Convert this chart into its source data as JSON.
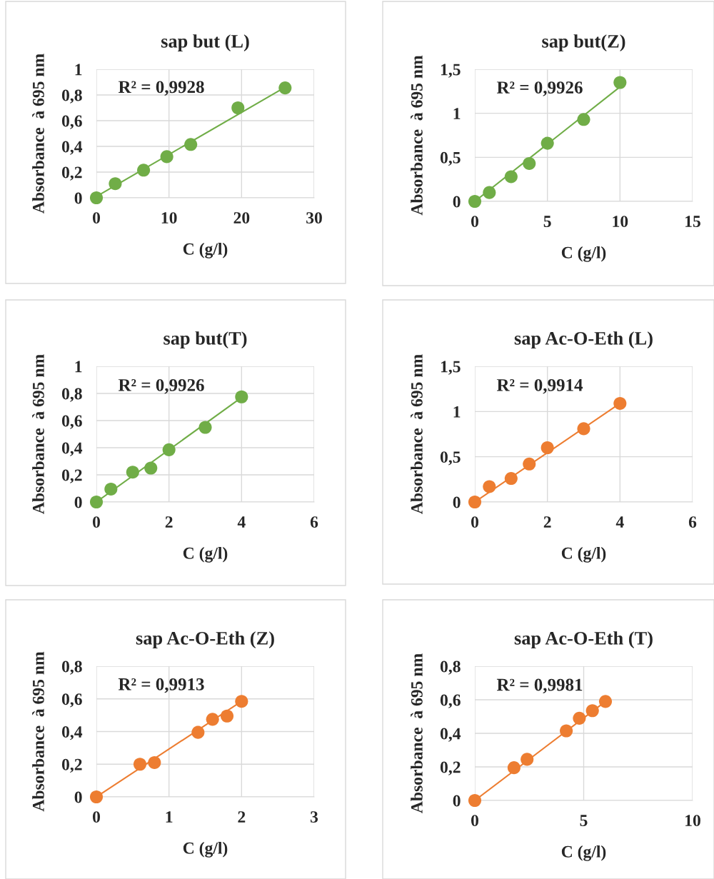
{
  "chart_data": [
    {
      "type": "scatter",
      "title": "sap but (L)",
      "xlabel": "C (g/l)",
      "ylabel": "Absorbance  à 695 nm",
      "xlim": [
        0,
        30
      ],
      "xticks": [
        0,
        10,
        20,
        30
      ],
      "ylim": [
        0,
        1
      ],
      "yticks": [
        0,
        {
          "value": 0.2,
          "label": "0,2"
        },
        {
          "value": 0.4,
          "label": "0,4"
        },
        {
          "value": 0.6,
          "label": "0,6"
        },
        {
          "value": 0.8,
          "label": "0,8"
        },
        1
      ],
      "grid": true,
      "annotations": [
        "R² = 0,9928"
      ],
      "series": [
        {
          "marker": "circle",
          "color": "#70ad47",
          "x": [
            0,
            2.6,
            6.5,
            9.7,
            13,
            19.5,
            26
          ],
          "values": [
            0,
            0.11,
            0.215,
            0.32,
            0.415,
            0.7,
            0.855
          ]
        },
        {
          "type": "line",
          "color": "#70ad47",
          "line_style": "solid",
          "x": [
            0,
            26
          ],
          "values": [
            0.01,
            0.86
          ]
        }
      ]
    },
    {
      "type": "scatter",
      "title": "sap but(Z)",
      "xlabel": "C (g/l)",
      "ylabel": "Absorbance  à 695 nm",
      "xlim": [
        0,
        15
      ],
      "xticks": [
        0,
        5,
        10,
        15
      ],
      "ylim": [
        0,
        1.5
      ],
      "yticks": [
        0,
        {
          "value": 0.5,
          "label": "0,5"
        },
        1,
        {
          "value": 1.5,
          "label": "1,5"
        }
      ],
      "grid": true,
      "annotations": [
        "R² = 0,9926"
      ],
      "series": [
        {
          "marker": "circle",
          "color": "#70ad47",
          "x": [
            0,
            1,
            2.5,
            3.75,
            5,
            7.5,
            10
          ],
          "values": [
            0,
            0.1,
            0.28,
            0.43,
            0.66,
            0.93,
            1.35
          ]
        },
        {
          "type": "line",
          "color": "#70ad47",
          "line_style": "solid",
          "x": [
            0,
            10
          ],
          "values": [
            0,
            1.3
          ]
        }
      ]
    },
    {
      "type": "scatter",
      "title": "sap but(T)",
      "xlabel": "C (g/l)",
      "ylabel": "Absorbance  à 695 nm",
      "xlim": [
        0,
        6
      ],
      "xticks": [
        0,
        2,
        4,
        6
      ],
      "ylim": [
        0,
        1
      ],
      "yticks": [
        0,
        {
          "value": 0.2,
          "label": "0,2"
        },
        {
          "value": 0.4,
          "label": "0,4"
        },
        {
          "value": 0.6,
          "label": "0,6"
        },
        {
          "value": 0.8,
          "label": "0,8"
        },
        1
      ],
      "grid": true,
      "annotations": [
        "R² = 0,9926"
      ],
      "series": [
        {
          "marker": "circle",
          "color": "#70ad47",
          "x": [
            0,
            0.4,
            1,
            1.5,
            2,
            3,
            4
          ],
          "values": [
            0,
            0.095,
            0.22,
            0.25,
            0.385,
            0.55,
            0.775
          ]
        },
        {
          "type": "line",
          "color": "#70ad47",
          "line_style": "solid",
          "x": [
            0,
            4
          ],
          "values": [
            0,
            0.77
          ]
        }
      ]
    },
    {
      "type": "scatter",
      "title": "sap Ac-O-Eth (L)",
      "xlabel": "C (g/l)",
      "ylabel": "Absorbance  à 695 nm",
      "xlim": [
        0,
        6
      ],
      "xticks": [
        0,
        2,
        4,
        6
      ],
      "ylim": [
        0,
        1.5
      ],
      "yticks": [
        0,
        {
          "value": 0.5,
          "label": "0,5"
        },
        1,
        {
          "value": 1.5,
          "label": "1,5"
        }
      ],
      "grid": true,
      "annotations": [
        "R² = 0,9914"
      ],
      "series": [
        {
          "marker": "circle",
          "color": "#ed7d31",
          "x": [
            0,
            0.4,
            1,
            1.5,
            2,
            3,
            4
          ],
          "values": [
            0,
            0.17,
            0.26,
            0.42,
            0.6,
            0.81,
            1.09
          ]
        },
        {
          "type": "line",
          "color": "#ed7d31",
          "line_style": "solid",
          "x": [
            0,
            4
          ],
          "values": [
            0,
            1.09
          ]
        }
      ]
    },
    {
      "type": "scatter",
      "title": "sap Ac-O-Eth (Z)",
      "xlabel": "C (g/l)",
      "ylabel": "Absorbance  à 695 nm",
      "xlim": [
        0,
        3
      ],
      "xticks": [
        0,
        1,
        2,
        3
      ],
      "ylim": [
        0,
        0.8
      ],
      "yticks": [
        0,
        {
          "value": 0.2,
          "label": "0,2"
        },
        {
          "value": 0.4,
          "label": "0,4"
        },
        {
          "value": 0.6,
          "label": "0,6"
        },
        {
          "value": 0.8,
          "label": "0,8"
        }
      ],
      "grid": true,
      "annotations": [
        "R² = 0,9913"
      ],
      "series": [
        {
          "marker": "circle",
          "color": "#ed7d31",
          "x": [
            0,
            0.6,
            0.8,
            1.4,
            1.6,
            1.8,
            2
          ],
          "values": [
            0,
            0.2,
            0.21,
            0.395,
            0.475,
            0.495,
            0.585
          ]
        },
        {
          "type": "line",
          "color": "#ed7d31",
          "line_style": "solid",
          "x": [
            0,
            2
          ],
          "values": [
            0,
            0.585
          ]
        }
      ]
    },
    {
      "type": "scatter",
      "title": "sap Ac-O-Eth (T)",
      "xlabel": "C (g/l)",
      "ylabel": "Absorbance  à 695 nm",
      "xlim": [
        0,
        10
      ],
      "xticks": [
        0,
        5,
        10
      ],
      "ylim": [
        0,
        0.8
      ],
      "yticks": [
        0,
        {
          "value": 0.2,
          "label": "0,2"
        },
        {
          "value": 0.4,
          "label": "0,4"
        },
        {
          "value": 0.6,
          "label": "0,6"
        },
        {
          "value": 0.8,
          "label": "0,8"
        }
      ],
      "grid": true,
      "annotations": [
        "R² = 0,9981"
      ],
      "series": [
        {
          "marker": "circle",
          "color": "#ed7d31",
          "x": [
            0,
            1.8,
            2.4,
            4.2,
            4.8,
            5.4,
            6
          ],
          "values": [
            0,
            0.195,
            0.245,
            0.415,
            0.49,
            0.535,
            0.59
          ]
        },
        {
          "type": "line",
          "color": "#ed7d31",
          "line_style": "solid",
          "x": [
            0,
            6
          ],
          "values": [
            0,
            0.59
          ]
        }
      ]
    }
  ]
}
